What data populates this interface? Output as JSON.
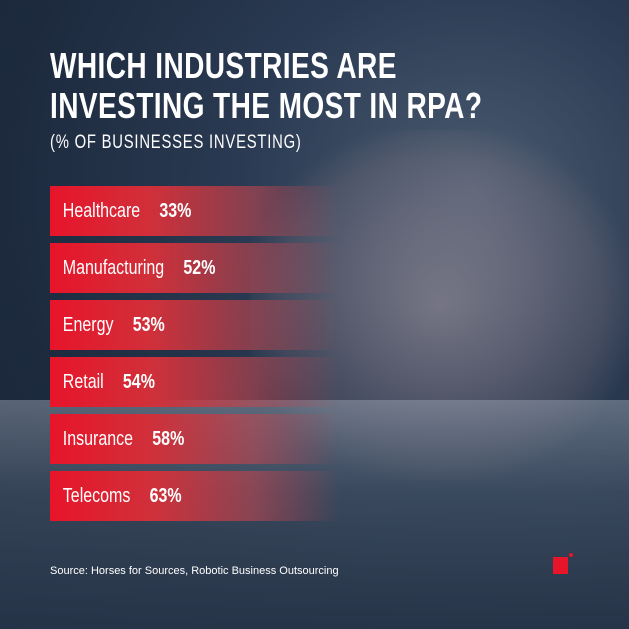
{
  "title_line1": "WHICH INDUSTRIES ARE",
  "title_line2": "INVESTING THE MOST IN RPA?",
  "subtitle": "(% OF BUSINESSES INVESTING)",
  "source": "Source: Horses for Sources, Robotic Business Outsourcing",
  "colors": {
    "accent": "#e8142a",
    "background": "#1d2a3e"
  },
  "chart_data": {
    "type": "bar",
    "title": "WHICH INDUSTRIES ARE INVESTING THE MOST IN RPA?",
    "subtitle": "(% OF BUSINESSES INVESTING)",
    "categories": [
      "Healthcare",
      "Manufacturing",
      "Energy",
      "Retail",
      "Insurance",
      "Telecoms"
    ],
    "values": [
      33,
      52,
      53,
      54,
      58,
      63
    ],
    "labels": [
      "33%",
      "52%",
      "53%",
      "54%",
      "58%",
      "63%"
    ]
  }
}
